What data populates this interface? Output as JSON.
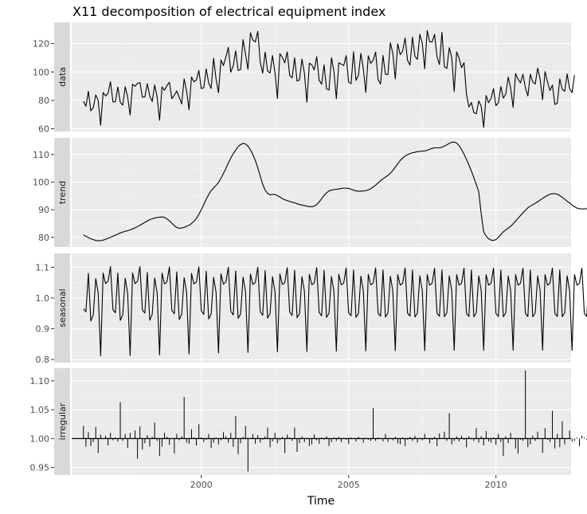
{
  "chart_data": {
    "type": "line",
    "title": "X11 decomposition of electrical equipment index",
    "xlabel": "Time",
    "xlim": [
      1995.6,
      2012.55
    ],
    "x_ticks": [
      2000,
      2005,
      2010
    ],
    "x_tick_labels": [
      "2000",
      "2005",
      "2010"
    ],
    "start": 1996.0,
    "frequency": 12,
    "panels": [
      {
        "name": "data",
        "ylim": [
          58,
          135
        ],
        "y_ticks": [
          60,
          80,
          100,
          120
        ],
        "y_tick_labels": [
          "60",
          "80",
          "100",
          "120"
        ],
        "values": [
          79.35,
          75.78,
          86.32,
          72.6,
          74.86,
          83.81,
          79.8,
          62.41,
          85.5,
          83.12,
          84.85,
          93.1,
          78.89,
          78.95,
          89.43,
          78.43,
          76.59,
          89.6,
          82.35,
          69.62,
          91.37,
          89.85,
          91.94,
          92.57,
          82.28,
          82.34,
          91.7,
          82.98,
          79.09,
          90.88,
          82.38,
          65.9,
          89.44,
          87.12,
          90.32,
          92.74,
          81.12,
          83.57,
          86.57,
          82.17,
          77.39,
          95.12,
          86.61,
          73.38,
          96.4,
          93.11,
          94.35,
          101.03,
          88.24,
          88.92,
          102.18,
          92.21,
          88.34,
          109.68,
          95.1,
          85.33,
          108.47,
          104.54,
          110.44,
          117.34,
          99.83,
          104.34,
          114.9,
          101.02,
          101.68,
          122.83,
          112.41,
          101.8,
          127.63,
          122.48,
          121.2,
          128.66,
          107.1,
          99.15,
          113.96,
          100.6,
          99.26,
          111.59,
          99.39,
          81.33,
          112.84,
          110.27,
          106.43,
          114.11,
          97.49,
          95.81,
          109.97,
          93.51,
          94.48,
          109.12,
          98.89,
          78.58,
          106.2,
          104.99,
          101.44,
          110.76,
          94.05,
          91.43,
          104.96,
          88.05,
          87.27,
          110.12,
          100.52,
          81.17,
          106.46,
          105.46,
          104.54,
          111.49,
          92.82,
          91.74,
          114.11,
          94.05,
          97.63,
          113.13,
          102.08,
          85.46,
          111.47,
          106.03,
          108.37,
          114.03,
          94.62,
          91.47,
          111.67,
          98.35,
          98.18,
          120.56,
          113.18,
          95.04,
          119.9,
          112.2,
          114.74,
          123.91,
          108.15,
          104.8,
          124.55,
          110.94,
          108.83,
          126.52,
          120.31,
          102.25,
          129.24,
          121.33,
          121.13,
          126.48,
          110.79,
          105.2,
          128.05,
          103.7,
          102.47,
          117.11,
          110.02,
          86.22,
          114.12,
          109.67,
          103.04,
          106.58,
          84.28,
          75.32,
          78.46,
          71.27,
          70.48,
          79.55,
          75.81,
          60.96,
          83.37,
          78.3,
          81.24,
          88.24,
          76.19,
          78.26,
          89.81,
          81.5,
          84.38,
          96.38,
          88.54,
          75.04,
          98.84,
          94.91,
          92.3,
          98.34,
          88.75,
          83.04,
          98.35,
          92.91,
          91.48,
          102.67,
          94.74,
          80.48,
          100.28,
          92.95,
          86.88,
          90.76,
          77.05,
          78.04,
          95.14,
          87.78,
          86.36,
          98.62,
          88.27,
          85.4,
          97.73
        ]
      },
      {
        "name": "trend",
        "ylim": [
          76.5,
          116
        ],
        "y_ticks": [
          80,
          90,
          100,
          110
        ],
        "y_tick_labels": [
          "80",
          "90",
          "100",
          "110"
        ],
        "values": [
          80.9,
          80.4,
          79.9,
          79.5,
          79.2,
          78.9,
          78.8,
          78.8,
          79.0,
          79.3,
          79.6,
          80.0,
          80.4,
          80.8,
          81.2,
          81.6,
          81.9,
          82.2,
          82.4,
          82.7,
          83.1,
          83.4,
          83.9,
          84.4,
          84.9,
          85.4,
          85.9,
          86.4,
          86.7,
          87.0,
          87.2,
          87.3,
          87.4,
          87.2,
          86.7,
          86.0,
          85.1,
          84.2,
          83.6,
          83.3,
          83.4,
          83.6,
          84.0,
          84.4,
          85.0,
          85.8,
          86.9,
          88.3,
          90.0,
          91.9,
          93.8,
          95.5,
          96.9,
          97.9,
          98.8,
          99.9,
          101.4,
          103.1,
          104.9,
          106.9,
          108.7,
          110.3,
          111.6,
          112.8,
          113.6,
          114.0,
          113.8,
          113.0,
          111.7,
          110.0,
          107.8,
          105.2,
          102.2,
          99.2,
          97.1,
          95.9,
          95.4,
          95.5,
          95.5,
          95.1,
          94.6,
          94.0,
          93.6,
          93.3,
          93.0,
          92.7,
          92.5,
          92.2,
          91.9,
          91.7,
          91.5,
          91.3,
          91.1,
          91.1,
          91.3,
          91.9,
          92.8,
          94.0,
          95.2,
          96.1,
          96.8,
          97.1,
          97.3,
          97.4,
          97.5,
          97.7,
          97.8,
          97.8,
          97.7,
          97.4,
          97.1,
          96.8,
          96.7,
          96.7,
          96.8,
          96.9,
          97.2,
          97.6,
          98.2,
          98.9,
          99.7,
          100.5,
          101.2,
          101.8,
          102.4,
          103.2,
          104.2,
          105.4,
          106.6,
          107.8,
          108.7,
          109.4,
          109.9,
          110.3,
          110.6,
          110.8,
          111.0,
          111.1,
          111.2,
          111.3,
          111.5,
          111.9,
          112.2,
          112.4,
          112.4,
          112.4,
          112.6,
          113.0,
          113.5,
          114.0,
          114.4,
          114.5,
          114.1,
          113.2,
          111.8,
          110.1,
          108.2,
          106.2,
          104.0,
          101.6,
          99.1,
          96.5,
          88.5,
          82.0,
          80.5,
          79.5,
          79.0,
          78.9,
          79.2,
          80.0,
          81.0,
          82.0,
          82.7,
          83.3,
          84.0,
          84.9,
          85.9,
          86.9,
          87.9,
          88.9,
          89.8,
          90.7,
          91.3,
          91.8,
          92.3,
          92.9,
          93.5,
          94.1,
          94.7,
          95.2,
          95.6,
          95.8,
          95.8,
          95.6,
          95.1,
          94.5,
          93.8,
          93.1,
          92.4,
          91.7,
          91.1,
          90.6,
          90.4,
          90.3,
          90.3,
          90.4,
          90.6
        ]
      },
      {
        "name": "seasonal",
        "ylim": [
          0.79,
          1.145
        ],
        "y_ticks": [
          0.8,
          0.9,
          1.0,
          1.1
        ],
        "y_tick_labels": [
          "0.8",
          "0.9",
          "1.0",
          "1.1"
        ],
        "values": [
          0.965,
          0.955,
          1.08,
          0.925,
          0.946,
          1.063,
          1.016,
          0.812,
          1.081,
          1.047,
          1.054,
          1.102,
          0.962,
          0.952,
          1.081,
          0.927,
          0.946,
          1.064,
          1.016,
          0.813,
          1.081,
          1.047,
          1.054,
          1.102,
          0.961,
          0.951,
          1.083,
          0.928,
          0.947,
          1.065,
          1.017,
          0.815,
          1.081,
          1.046,
          1.053,
          1.101,
          0.96,
          0.949,
          1.085,
          0.93,
          0.947,
          1.066,
          1.018,
          0.818,
          1.08,
          1.046,
          1.052,
          1.101,
          0.958,
          0.947,
          1.087,
          0.932,
          0.948,
          1.067,
          1.019,
          0.821,
          1.079,
          1.045,
          1.052,
          1.1,
          0.957,
          0.945,
          1.088,
          0.934,
          0.948,
          1.068,
          1.02,
          0.823,
          1.078,
          1.044,
          1.051,
          1.1,
          0.955,
          0.944,
          1.089,
          0.935,
          0.949,
          1.069,
          1.021,
          0.825,
          1.078,
          1.044,
          1.05,
          1.099,
          0.954,
          0.943,
          1.09,
          0.936,
          0.949,
          1.069,
          1.022,
          0.826,
          1.077,
          1.043,
          1.049,
          1.099,
          0.953,
          0.942,
          1.09,
          0.937,
          0.95,
          1.07,
          1.022,
          0.827,
          1.077,
          1.043,
          1.049,
          1.098,
          0.952,
          0.942,
          1.091,
          0.937,
          0.95,
          1.071,
          1.023,
          0.828,
          1.077,
          1.043,
          1.048,
          1.098,
          0.951,
          0.941,
          1.091,
          0.938,
          0.951,
          1.071,
          1.023,
          0.829,
          1.076,
          1.042,
          1.048,
          1.098,
          0.951,
          0.941,
          1.091,
          0.938,
          0.951,
          1.072,
          1.024,
          0.829,
          1.076,
          1.042,
          1.048,
          1.097,
          0.95,
          0.941,
          1.091,
          0.939,
          0.952,
          1.072,
          1.024,
          0.83,
          1.076,
          1.042,
          1.048,
          1.097,
          0.95,
          0.94,
          1.091,
          0.939,
          0.952,
          1.072,
          1.024,
          0.83,
          1.076,
          1.042,
          1.048,
          1.097,
          0.95,
          0.94,
          1.091,
          0.939,
          0.952,
          1.072,
          1.024,
          0.83,
          1.076,
          1.042,
          1.048,
          1.097,
          0.95,
          0.94,
          1.091,
          0.939,
          0.952,
          1.072,
          1.024,
          0.83,
          1.076,
          1.042,
          1.048,
          1.097,
          0.95,
          0.94,
          1.091,
          0.939,
          0.952,
          1.072,
          1.024,
          0.83,
          1.076,
          1.042,
          1.048,
          1.097,
          0.95,
          0.94,
          1.091
        ]
      },
      {
        "name": "irregular",
        "ylim": [
          0.937,
          1.122
        ],
        "y_ticks": [
          0.95,
          1.0,
          1.05,
          1.1
        ],
        "y_tick_labels": [
          "0.95",
          "1.00",
          "1.05",
          "1.10"
        ],
        "baseline": 1.0,
        "values": [
          1.022,
          0.986,
          1.011,
          0.987,
          0.994,
          1.02,
          0.975,
          1.007,
          0.999,
          1.005,
          0.988,
          1.01,
          0.997,
          1.002,
          0.995,
          1.063,
          0.996,
          1.008,
          0.984,
          1.01,
          0.999,
          1.014,
          0.965,
          1.021,
          0.981,
          0.992,
          1.006,
          0.986,
          1.003,
          1.028,
          0.996,
          0.97,
          0.986,
          1.01,
          1.003,
          0.989,
          1.0,
          0.974,
          1.008,
          0.997,
          1.004,
          1.072,
          0.993,
          0.991,
          1.016,
          1.002,
          0.988,
          1.025,
          1.002,
          0.994,
          0.998,
          1.008,
          0.984,
          0.993,
          1.002,
          0.99,
          0.997,
          1.011,
          1.004,
          0.993,
          1.01,
          0.986,
          1.039,
          0.973,
          0.992,
          1.003,
          1.022,
          0.943,
          1.0,
          1.008,
          0.991,
          1.006,
          0.993,
          0.998,
          1.004,
          1.019,
          0.985,
          0.995,
          1.01,
          0.992,
          0.997,
          1.003,
          0.975,
          1.007,
          1.002,
          0.996,
          1.019,
          0.977,
          0.992,
          1.004,
          0.994,
          1.001,
          0.987,
          0.99,
          1.007,
          0.997,
          0.991,
          1.002,
          0.998,
          1.004,
          0.987,
          0.994,
          1.002,
          0.996,
          1.003,
          0.994,
          1.001,
          0.998,
          0.991,
          1.002,
          1.0,
          0.995,
          1.003,
          0.999,
          0.993,
          1.001,
          0.998,
          0.996,
          1.053,
          0.996,
          1.002,
          0.999,
          0.995,
          1.008,
          0.994,
          1.001,
          0.997,
          1.003,
          0.992,
          0.99,
          1.002,
          0.987,
          0.998,
          1.003,
          0.996,
          1.005,
          0.993,
          1.001,
          0.997,
          1.008,
          1.0,
          0.992,
          0.998,
          1.003,
          0.987,
          1.009,
          1.001,
          1.012,
          0.996,
          1.044,
          0.99,
          0.996,
          1.004,
          0.995,
          1.005,
          0.998,
          0.985,
          1.004,
          1.001,
          0.996,
          1.018,
          0.993,
          1.004,
          0.988,
          1.013,
          0.995,
          0.993,
          1.002,
          0.989,
          1.008,
          0.994,
          0.97,
          1.004,
          0.992,
          1.01,
          0.999,
          0.983,
          0.974,
          0.998,
          0.996,
          1.118,
          0.985,
          0.99,
          1.005,
          0.996,
          1.012,
          0.999,
          0.975,
          1.018,
          0.998,
          0.994,
          1.048,
          0.983,
          1.008,
          0.985,
          1.03,
          0.99,
          0.999,
          1.014,
          0.995,
          0.996,
          1.002,
          0.987,
          1.005,
          1.002,
          0.998,
          0.992,
          1.01,
          1.003,
          1.007,
          0.994
        ]
      }
    ]
  }
}
